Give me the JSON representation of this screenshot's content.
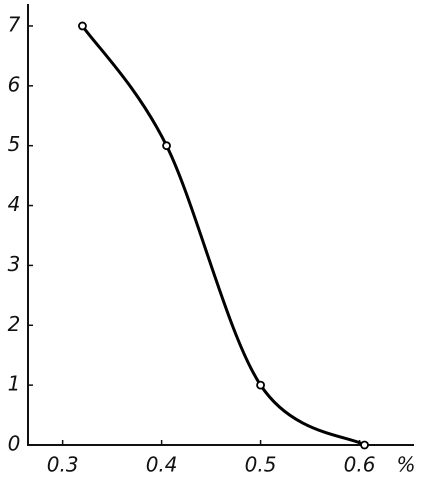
{
  "chart_data": {
    "type": "line",
    "x_label": "%",
    "x": [
      0.32,
      0.405,
      0.5,
      0.605
    ],
    "values": [
      7,
      5,
      1,
      0
    ],
    "color": "#000000",
    "xlim": [
      0.265,
      0.655
    ],
    "ylim": [
      0,
      7.3
    ],
    "xticks": [
      0.3,
      0.4,
      0.5,
      0.6
    ],
    "yticks": [
      0,
      1,
      2,
      3,
      4,
      5,
      6,
      7
    ],
    "grid": false
  }
}
